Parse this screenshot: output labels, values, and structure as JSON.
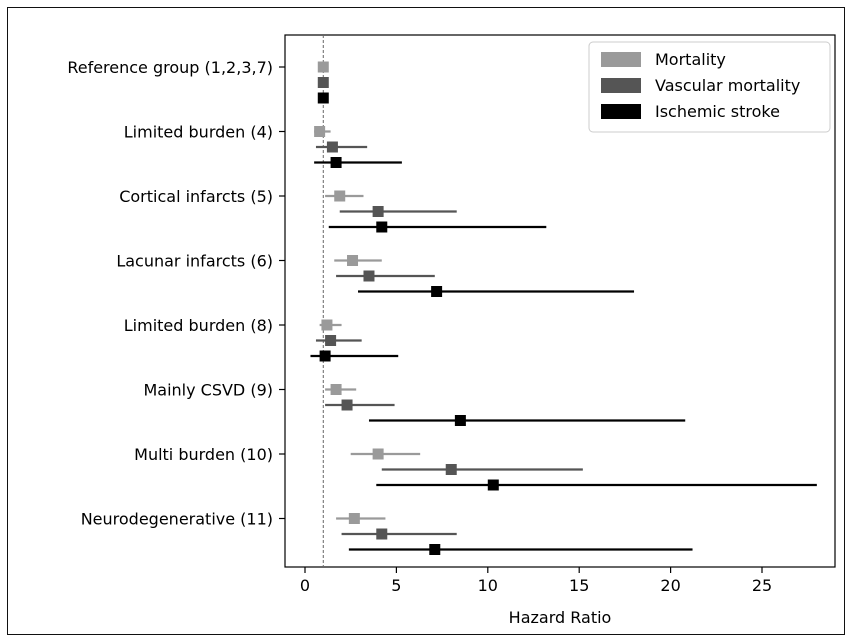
{
  "chart_data": {
    "type": "forest",
    "xlabel": "Hazard Ratio",
    "ylabel": "",
    "title": "",
    "xlim": [
      -1,
      28.5
    ],
    "xticks": [
      0,
      5,
      10,
      15,
      20,
      25
    ],
    "reference_line": 1,
    "legend": {
      "placement": "top-right",
      "entries": [
        "Mortality",
        "Vascular mortality",
        "Ischemic stroke"
      ]
    },
    "categories": [
      "Reference group (1,2,3,7)",
      "Limited burden (4)",
      "Cortical infarcts (5)",
      "Lacunar infarcts (6)",
      "Limited burden (8)",
      "Mainly CSVD (9)",
      "Multi burden (10)",
      "Neurodegenerative (11)"
    ],
    "series": [
      {
        "name": "Mortality",
        "color": "#9a9a9a",
        "values": [
          1.0,
          0.8,
          1.9,
          2.6,
          1.2,
          1.7,
          4.0,
          2.7
        ],
        "lower": [
          1.0,
          0.5,
          1.1,
          1.6,
          0.8,
          1.1,
          2.5,
          1.7
        ],
        "upper": [
          1.0,
          1.4,
          3.2,
          4.2,
          2.0,
          2.8,
          6.3,
          4.4
        ]
      },
      {
        "name": "Vascular mortality",
        "color": "#555555",
        "values": [
          1.0,
          1.5,
          4.0,
          3.5,
          1.4,
          2.3,
          8.0,
          4.2
        ],
        "lower": [
          1.0,
          0.6,
          1.9,
          1.7,
          0.6,
          1.1,
          4.2,
          2.0
        ],
        "upper": [
          1.0,
          3.4,
          8.3,
          7.1,
          3.1,
          4.9,
          15.2,
          8.3
        ]
      },
      {
        "name": "Ischemic stroke",
        "color": "#000000",
        "values": [
          1.0,
          1.7,
          4.2,
          7.2,
          1.1,
          8.5,
          10.3,
          7.1
        ],
        "lower": [
          1.0,
          0.5,
          1.3,
          2.9,
          0.3,
          3.5,
          3.9,
          2.4
        ],
        "upper": [
          1.0,
          5.3,
          13.2,
          18.0,
          5.1,
          20.8,
          28.0,
          21.2
        ]
      }
    ]
  }
}
